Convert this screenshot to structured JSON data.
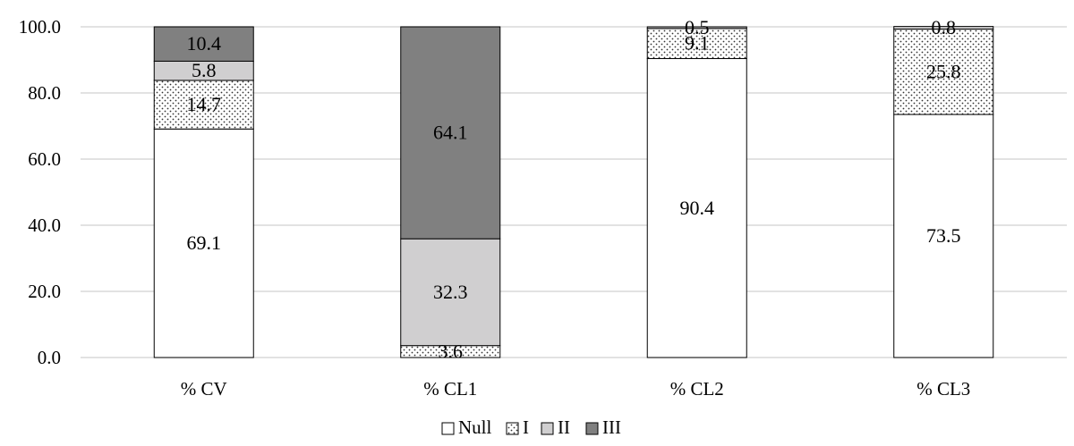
{
  "chart_data": {
    "type": "bar",
    "stacked": true,
    "categories": [
      "% CV",
      "% CL1",
      "% CL2",
      "% CL3"
    ],
    "series": [
      {
        "name": "Null",
        "values": [
          69.1,
          0,
          90.4,
          73.5
        ],
        "fill": "#ffffff",
        "pattern": "none"
      },
      {
        "name": "I",
        "values": [
          14.7,
          3.6,
          9.1,
          25.8
        ],
        "fill": "#ffffff",
        "pattern": "dots"
      },
      {
        "name": "II",
        "values": [
          5.8,
          32.3,
          0.5,
          0.8
        ],
        "fill": "#d0cfd0",
        "pattern": "none"
      },
      {
        "name": "III",
        "values": [
          10.4,
          64.1,
          0,
          0
        ],
        "fill": "#808080",
        "pattern": "none"
      }
    ],
    "data_labels": [
      {
        "category": "% CV",
        "series": "Null",
        "text": "69.1"
      },
      {
        "category": "% CV",
        "series": "I",
        "text": "14.7"
      },
      {
        "category": "% CV",
        "series": "II",
        "text": "5.8"
      },
      {
        "category": "% CV",
        "series": "III",
        "text": "10.4"
      },
      {
        "category": "% CL1",
        "series": "I",
        "text": "3.6"
      },
      {
        "category": "% CL1",
        "series": "II",
        "text": "32.3"
      },
      {
        "category": "% CL1",
        "series": "III",
        "text": "64.1"
      },
      {
        "category": "% CL2",
        "series": "Null",
        "text": "90.4"
      },
      {
        "category": "% CL2",
        "series": "I",
        "text": "9.1"
      },
      {
        "category": "% CL2",
        "series": "II",
        "text": "0.5"
      },
      {
        "category": "% CL3",
        "series": "Null",
        "text": "73.5"
      },
      {
        "category": "% CL3",
        "series": "I",
        "text": "25.8"
      },
      {
        "category": "% CL3",
        "series": "II",
        "text": "0.8"
      }
    ],
    "y_ticks": [
      "0.0",
      "20.0",
      "40.0",
      "60.0",
      "80.0",
      "100.0"
    ],
    "ylim": [
      0,
      100
    ],
    "grid": true,
    "legend_position": "bottom",
    "title": "",
    "xlabel": "",
    "ylabel": ""
  }
}
